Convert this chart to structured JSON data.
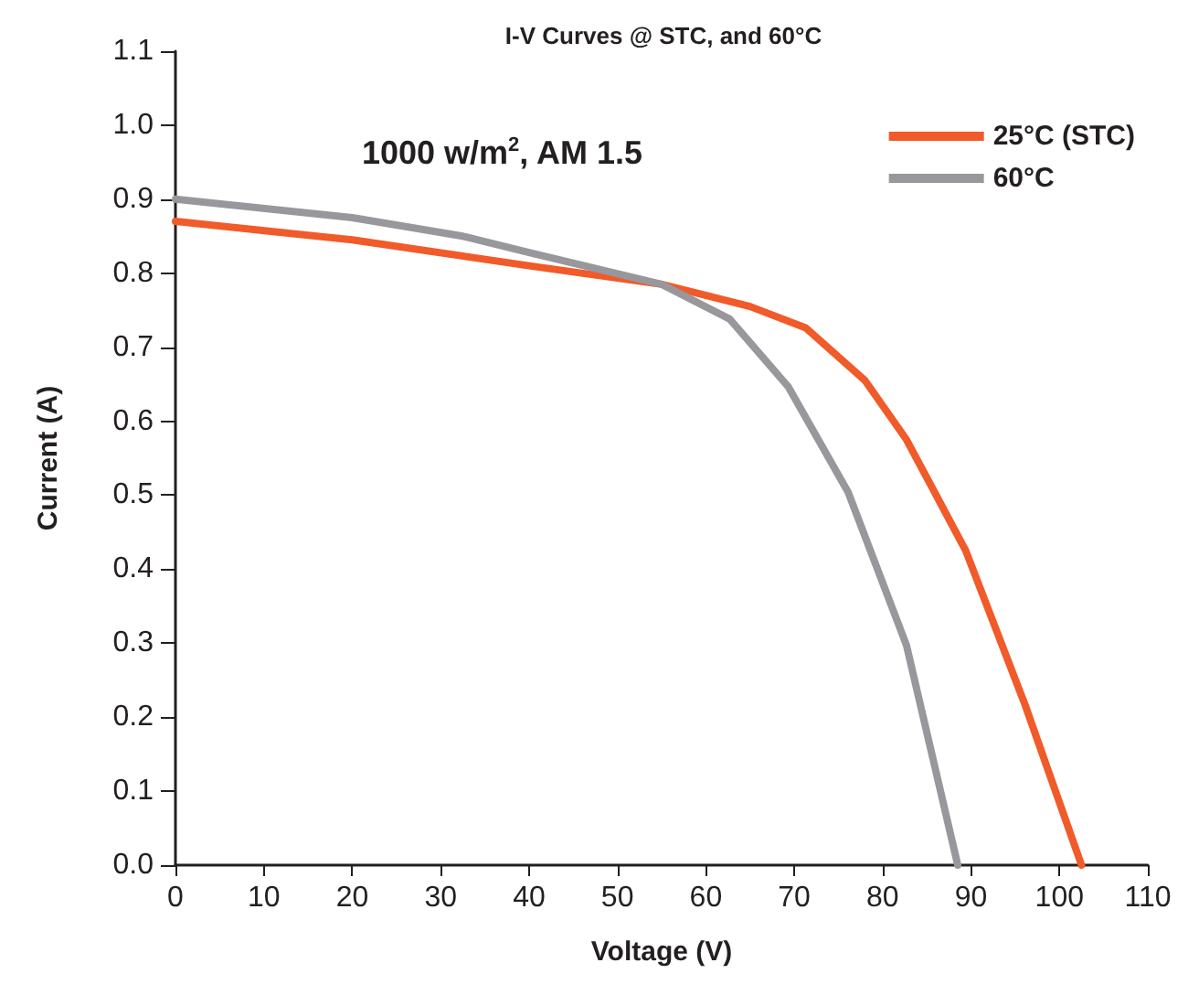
{
  "chart_data": {
    "type": "line",
    "title": "I-V Curves @ STC, and 60°C",
    "xlabel": "Voltage (V)",
    "ylabel": "Current (A)",
    "annotations": [
      "1000 w/m$^{2}$, AM 1.5"
    ],
    "series": [
      {
        "name": "25°C (STC)",
        "color": "#f15a29",
        "x": [
          0,
          20,
          40,
          55,
          65,
          71.3,
          78,
          82.7,
          89.4,
          96.1,
          102.5
        ],
        "values": [
          0.87,
          0.845,
          0.81,
          0.785,
          0.755,
          0.726,
          0.655,
          0.575,
          0.425,
          0.217,
          0
        ]
      },
      {
        "name": "60°C",
        "color": "#98989c",
        "x": [
          0,
          20,
          32.5,
          40,
          55,
          62.7,
          69.3,
          76.1,
          82.7,
          88.5
        ],
        "values": [
          0.9,
          0.875,
          0.85,
          0.828,
          0.785,
          0.738,
          0.647,
          0.504,
          0.297,
          0
        ]
      }
    ],
    "xlim": [
      0,
      110
    ],
    "xticks": [
      0,
      10,
      20,
      30,
      40,
      50,
      60,
      70,
      80,
      90,
      100,
      110
    ],
    "ylim": [
      0,
      1.1
    ],
    "yticks": [
      {
        "value": 0,
        "label": "0.0"
      },
      0.1,
      0.2,
      0.3,
      0.4,
      0.5,
      0.6,
      0.7,
      0.8,
      0.9,
      {
        "value": 1,
        "label": "1.0"
      },
      1.1
    ],
    "grid": false,
    "legend": "top right",
    "marker": "none",
    "line_style": "solid"
  }
}
